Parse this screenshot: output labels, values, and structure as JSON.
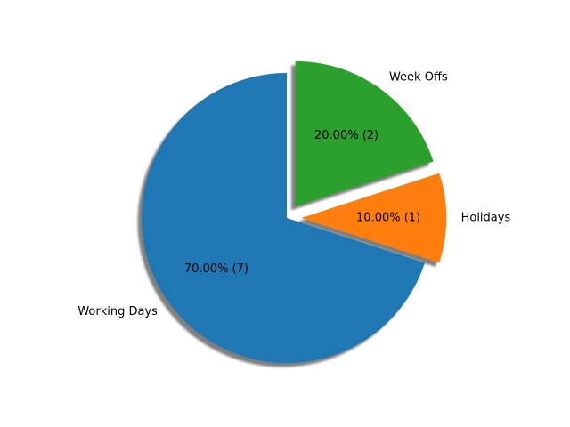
{
  "chart_data": {
    "type": "pie",
    "title": "",
    "slices": [
      {
        "label": "Working Days",
        "value": 7,
        "percent_label": "70.00%  (7)",
        "color": "#1f77b4",
        "exploded": false
      },
      {
        "label": "Holidays",
        "value": 1,
        "percent_label": "10.00%  (1)",
        "color": "#ff7f0e",
        "exploded": true
      },
      {
        "label": "Week Offs",
        "value": 2,
        "percent_label": "20.00%  (2)",
        "color": "#2ca02c",
        "exploded": true
      }
    ],
    "shadow": true,
    "legend": "none"
  }
}
